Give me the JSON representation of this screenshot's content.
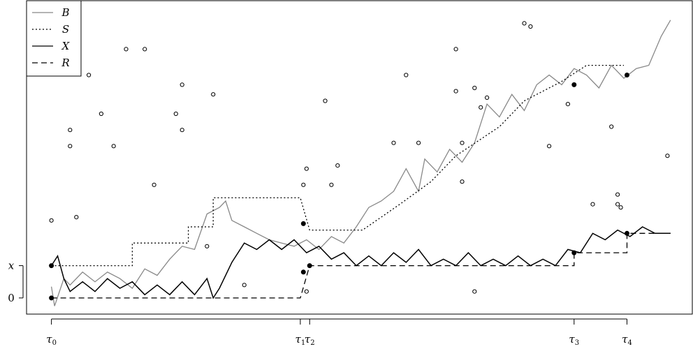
{
  "chart_data": {
    "type": "line",
    "title": "",
    "xlabel": "",
    "ylabel": "",
    "grid": false,
    "legend": {
      "placement": "top-left",
      "entries": [
        {
          "name": "B",
          "color": "#888888",
          "dash": "solid"
        },
        {
          "name": "S",
          "color": "#000000",
          "dash": "dotted"
        },
        {
          "name": "X",
          "color": "#000000",
          "dash": "solid"
        },
        {
          "name": "R",
          "color": "#000000",
          "dash": "dashed"
        }
      ]
    },
    "x_ticks": [
      {
        "base": "τ",
        "sub": "0",
        "t": 0
      },
      {
        "base": "τ",
        "sub": "1",
        "t": 0.4
      },
      {
        "base": "τ",
        "sub": "2",
        "t": 0.415
      },
      {
        "base": "τ",
        "sub": "3",
        "t": 0.84
      },
      {
        "base": "τ",
        "sub": "4",
        "t": 0.925
      }
    ],
    "y_ticks": [
      {
        "label": "0",
        "value": 0
      },
      {
        "label": "x",
        "value": 1
      }
    ],
    "xlim": [
      -0.04,
      1.03
    ],
    "ylim": [
      -0.5,
      9.2
    ],
    "series": [
      {
        "name": "B",
        "color": "#888888",
        "points": [
          [
            0,
            0.35
          ],
          [
            0.005,
            -0.25
          ],
          [
            0.02,
            0.6
          ],
          [
            0.03,
            0.4
          ],
          [
            0.05,
            0.8
          ],
          [
            0.07,
            0.5
          ],
          [
            0.09,
            0.8
          ],
          [
            0.11,
            0.6
          ],
          [
            0.13,
            0.3
          ],
          [
            0.15,
            0.9
          ],
          [
            0.17,
            0.7
          ],
          [
            0.19,
            1.2
          ],
          [
            0.21,
            1.6
          ],
          [
            0.23,
            1.5
          ],
          [
            0.25,
            2.6
          ],
          [
            0.27,
            2.8
          ],
          [
            0.28,
            3.0
          ],
          [
            0.29,
            2.4
          ],
          [
            0.31,
            2.2
          ],
          [
            0.33,
            2.0
          ],
          [
            0.35,
            1.8
          ],
          [
            0.37,
            1.7
          ],
          [
            0.39,
            1.6
          ],
          [
            0.41,
            1.8
          ],
          [
            0.43,
            1.5
          ],
          [
            0.45,
            1.9
          ],
          [
            0.47,
            1.7
          ],
          [
            0.49,
            2.2
          ],
          [
            0.51,
            2.8
          ],
          [
            0.53,
            3.0
          ],
          [
            0.55,
            3.3
          ],
          [
            0.57,
            4.0
          ],
          [
            0.59,
            3.3
          ],
          [
            0.6,
            4.3
          ],
          [
            0.62,
            3.9
          ],
          [
            0.64,
            4.6
          ],
          [
            0.66,
            4.2
          ],
          [
            0.68,
            4.8
          ],
          [
            0.7,
            6.0
          ],
          [
            0.72,
            5.6
          ],
          [
            0.74,
            6.3
          ],
          [
            0.76,
            5.8
          ],
          [
            0.78,
            6.6
          ],
          [
            0.8,
            6.9
          ],
          [
            0.82,
            6.6
          ],
          [
            0.84,
            7.1
          ],
          [
            0.86,
            6.9
          ],
          [
            0.88,
            6.5
          ],
          [
            0.9,
            7.2
          ],
          [
            0.92,
            6.8
          ],
          [
            0.94,
            7.1
          ],
          [
            0.96,
            7.2
          ],
          [
            0.98,
            8.1
          ],
          [
            0.995,
            8.6
          ]
        ]
      },
      {
        "name": "S",
        "color": "#000000",
        "steps": [
          [
            0,
            1.0
          ],
          [
            0.13,
            1.0
          ],
          [
            0.13,
            1.7
          ],
          [
            0.22,
            1.7
          ],
          [
            0.22,
            2.2
          ],
          [
            0.26,
            2.2
          ],
          [
            0.26,
            3.1
          ],
          [
            0.4,
            3.1
          ],
          [
            0.415,
            2.1
          ],
          [
            0.5,
            2.1
          ],
          [
            0.56,
            2.9
          ],
          [
            0.61,
            3.6
          ],
          [
            0.65,
            4.4
          ],
          [
            0.72,
            5.3
          ],
          [
            0.76,
            6.1
          ],
          [
            0.82,
            6.7
          ],
          [
            0.86,
            7.2
          ],
          [
            0.92,
            7.2
          ]
        ]
      },
      {
        "name": "X",
        "color": "#000000",
        "points": [
          [
            0,
            1.0
          ],
          [
            0.01,
            1.3
          ],
          [
            0.02,
            0.6
          ],
          [
            0.03,
            0.2
          ],
          [
            0.05,
            0.5
          ],
          [
            0.07,
            0.2
          ],
          [
            0.09,
            0.6
          ],
          [
            0.11,
            0.3
          ],
          [
            0.13,
            0.5
          ],
          [
            0.15,
            0.1
          ],
          [
            0.17,
            0.4
          ],
          [
            0.19,
            0.1
          ],
          [
            0.21,
            0.5
          ],
          [
            0.23,
            0.1
          ],
          [
            0.25,
            0.6
          ],
          [
            0.26,
            0.0
          ],
          [
            0.27,
            0.3
          ],
          [
            0.29,
            1.1
          ],
          [
            0.31,
            1.7
          ],
          [
            0.33,
            1.5
          ],
          [
            0.35,
            1.8
          ],
          [
            0.37,
            1.5
          ],
          [
            0.39,
            1.8
          ],
          [
            0.41,
            1.4
          ],
          [
            0.43,
            1.6
          ],
          [
            0.45,
            1.2
          ],
          [
            0.47,
            1.4
          ],
          [
            0.49,
            1.0
          ],
          [
            0.51,
            1.3
          ],
          [
            0.53,
            1.0
          ],
          [
            0.55,
            1.4
          ],
          [
            0.57,
            1.1
          ],
          [
            0.59,
            1.5
          ],
          [
            0.61,
            1.0
          ],
          [
            0.63,
            1.2
          ],
          [
            0.65,
            1.0
          ],
          [
            0.67,
            1.4
          ],
          [
            0.69,
            1.0
          ],
          [
            0.71,
            1.2
          ],
          [
            0.73,
            1.0
          ],
          [
            0.75,
            1.3
          ],
          [
            0.77,
            1.0
          ],
          [
            0.79,
            1.2
          ],
          [
            0.81,
            1.0
          ],
          [
            0.83,
            1.5
          ],
          [
            0.85,
            1.4
          ],
          [
            0.87,
            2.0
          ],
          [
            0.89,
            1.8
          ],
          [
            0.91,
            2.1
          ],
          [
            0.93,
            1.9
          ],
          [
            0.95,
            2.2
          ],
          [
            0.97,
            2.0
          ],
          [
            0.995,
            2.0
          ]
        ]
      },
      {
        "name": "R",
        "color": "#000000",
        "steps": [
          [
            0,
            0
          ],
          [
            0.4,
            0
          ],
          [
            0.415,
            1.0
          ],
          [
            0.84,
            1.0
          ],
          [
            0.84,
            1.4
          ],
          [
            0.925,
            1.4
          ],
          [
            0.925,
            2.0
          ],
          [
            0.995,
            2.0
          ]
        ]
      }
    ],
    "filled_markers": [
      [
        0,
        1.0
      ],
      [
        0,
        0
      ],
      [
        0.405,
        2.3
      ],
      [
        0.405,
        0.8
      ],
      [
        0.415,
        1.0
      ],
      [
        0.84,
        1.4
      ],
      [
        0.84,
        6.6
      ],
      [
        0.925,
        6.9
      ],
      [
        0.925,
        2.0
      ]
    ],
    "open_markers": [
      [
        0,
        2.4
      ],
      [
        0.03,
        5.2
      ],
      [
        0.03,
        4.7
      ],
      [
        0.04,
        2.5
      ],
      [
        0.06,
        6.9
      ],
      [
        0.08,
        5.7
      ],
      [
        0.1,
        4.7
      ],
      [
        0.12,
        7.7
      ],
      [
        0.15,
        7.7
      ],
      [
        0.165,
        3.5
      ],
      [
        0.2,
        5.7
      ],
      [
        0.21,
        6.6
      ],
      [
        0.21,
        5.2
      ],
      [
        0.26,
        6.3
      ],
      [
        0.25,
        1.6
      ],
      [
        0.31,
        0.4
      ],
      [
        0.405,
        3.5
      ],
      [
        0.41,
        4.0
      ],
      [
        0.41,
        0.2
      ],
      [
        0.44,
        6.1
      ],
      [
        0.45,
        3.5
      ],
      [
        0.46,
        4.1
      ],
      [
        0.55,
        4.8
      ],
      [
        0.57,
        6.9
      ],
      [
        0.59,
        4.8
      ],
      [
        0.65,
        7.7
      ],
      [
        0.65,
        6.4
      ],
      [
        0.66,
        4.8
      ],
      [
        0.66,
        3.6
      ],
      [
        0.68,
        6.5
      ],
      [
        0.69,
        5.9
      ],
      [
        0.7,
        6.2
      ],
      [
        0.68,
        0.2
      ],
      [
        0.76,
        8.5
      ],
      [
        0.77,
        8.4
      ],
      [
        0.8,
        4.7
      ],
      [
        0.83,
        6.0
      ],
      [
        0.87,
        2.9
      ],
      [
        0.9,
        5.3
      ],
      [
        0.91,
        2.9
      ],
      [
        0.91,
        3.2
      ],
      [
        0.915,
        2.8
      ],
      [
        0.99,
        4.4
      ]
    ]
  }
}
